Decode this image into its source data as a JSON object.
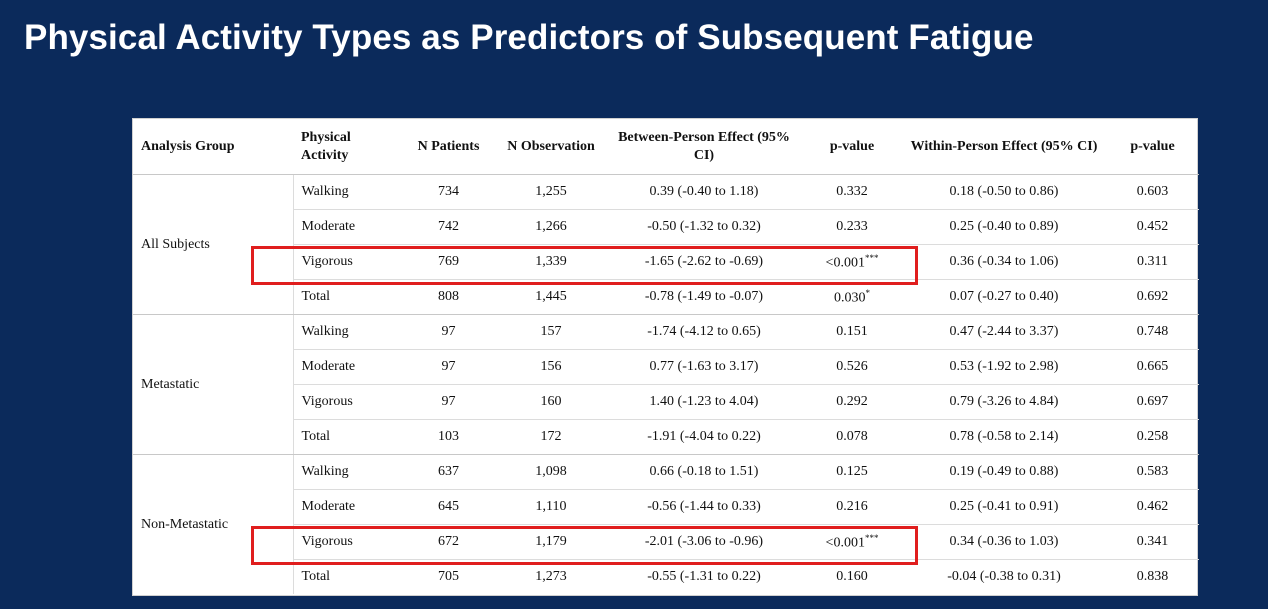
{
  "title": "Physical Activity Types as Predictors of Subsequent Fatigue",
  "table": {
    "headers": [
      "Analysis Group",
      "Physical Activity",
      "N Patients",
      "N Observation",
      "Between-Person Effect (95% CI)",
      "p-value",
      "Within-Person Effect (95% CI)",
      "p-value"
    ],
    "groups": [
      {
        "name": "All Subjects",
        "rows": [
          {
            "activity": "Walking",
            "n_patients": "734",
            "n_obs": "1,255",
            "between": "0.39 (-0.40 to 1.18)",
            "p1": "0.332",
            "within": "0.18 (-0.50 to 0.86)",
            "p2": "0.603"
          },
          {
            "activity": "Moderate",
            "n_patients": "742",
            "n_obs": "1,266",
            "between": "-0.50 (-1.32 to 0.32)",
            "p1": "0.233",
            "within": "0.25 (-0.40 to 0.89)",
            "p2": "0.452"
          },
          {
            "activity": "Vigorous",
            "n_patients": "769",
            "n_obs": "1,339",
            "between": "-1.65 (-2.62 to -0.69)",
            "p1": "<0.001",
            "p1_sig": "***",
            "within": "0.36 (-0.34 to 1.06)",
            "p2": "0.311"
          },
          {
            "activity": "Total",
            "n_patients": "808",
            "n_obs": "1,445",
            "between": "-0.78 (-1.49 to -0.07)",
            "p1": "0.030",
            "p1_sig": "*",
            "within": "0.07 (-0.27 to 0.40)",
            "p2": "0.692"
          }
        ]
      },
      {
        "name": "Metastatic",
        "rows": [
          {
            "activity": "Walking",
            "n_patients": "97",
            "n_obs": "157",
            "between": "-1.74 (-4.12 to 0.65)",
            "p1": "0.151",
            "within": "0.47 (-2.44 to 3.37)",
            "p2": "0.748"
          },
          {
            "activity": "Moderate",
            "n_patients": "97",
            "n_obs": "156",
            "between": "0.77 (-1.63 to 3.17)",
            "p1": "0.526",
            "within": "0.53 (-1.92 to 2.98)",
            "p2": "0.665"
          },
          {
            "activity": "Vigorous",
            "n_patients": "97",
            "n_obs": "160",
            "between": "1.40 (-1.23 to 4.04)",
            "p1": "0.292",
            "within": "0.79 (-3.26 to 4.84)",
            "p2": "0.697"
          },
          {
            "activity": "Total",
            "n_patients": "103",
            "n_obs": "172",
            "between": "-1.91 (-4.04 to 0.22)",
            "p1": "0.078",
            "within": "0.78 (-0.58 to 2.14)",
            "p2": "0.258"
          }
        ]
      },
      {
        "name": "Non-Metastatic",
        "rows": [
          {
            "activity": "Walking",
            "n_patients": "637",
            "n_obs": "1,098",
            "between": "0.66 (-0.18 to 1.51)",
            "p1": "0.125",
            "within": "0.19 (-0.49 to 0.88)",
            "p2": "0.583"
          },
          {
            "activity": "Moderate",
            "n_patients": "645",
            "n_obs": "1,110",
            "between": "-0.56 (-1.44 to 0.33)",
            "p1": "0.216",
            "within": "0.25 (-0.41 to 0.91)",
            "p2": "0.462"
          },
          {
            "activity": "Vigorous",
            "n_patients": "672",
            "n_obs": "1,179",
            "between": "-2.01 (-3.06 to -0.96)",
            "p1": "<0.001",
            "p1_sig": "***",
            "within": "0.34 (-0.36 to 1.03)",
            "p2": "0.341"
          },
          {
            "activity": "Total",
            "n_patients": "705",
            "n_obs": "1,273",
            "between": "-0.55 (-1.31 to 0.22)",
            "p1": "0.160",
            "within": "-0.04 (-0.38 to 0.31)",
            "p2": "0.838"
          }
        ]
      }
    ]
  },
  "colors": {
    "background": "#0b2a5b",
    "highlight": "#e01e1e"
  }
}
